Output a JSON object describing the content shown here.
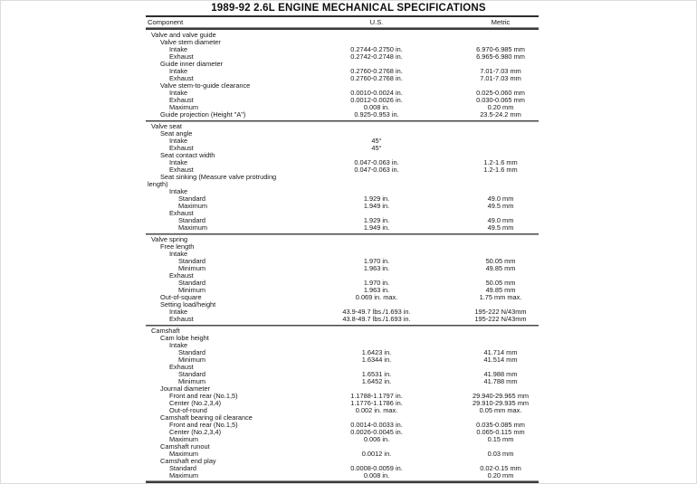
{
  "title": "1989-92 2.6L ENGINE MECHANICAL SPECIFICATIONS",
  "table": {
    "headers": {
      "component": "Component",
      "us": "U.S.",
      "metric": "Metric"
    },
    "sections": [
      {
        "name": "valve-and-valve-guide",
        "rows": [
          {
            "label": "Valve and valve guide",
            "level": 0,
            "us": "",
            "metric": ""
          },
          {
            "label": "Valve stem diameter",
            "level": 1,
            "us": "",
            "metric": ""
          },
          {
            "label": "Intake",
            "level": 2,
            "us": "0.2744-0.2750 in.",
            "metric": "6.970-6.985 mm"
          },
          {
            "label": "Exhaust",
            "level": 2,
            "us": "0.2742-0.2748 in.",
            "metric": "6.965-6.980 mm"
          },
          {
            "label": "Guide inner diameter",
            "level": 1,
            "us": "",
            "metric": ""
          },
          {
            "label": "Intake",
            "level": 2,
            "us": "0.2760-0.2768 in.",
            "metric": "7.01-7.03 mm"
          },
          {
            "label": "Exhaust",
            "level": 2,
            "us": "0.2760-0.2768 in.",
            "metric": "7.01-7.03 mm"
          },
          {
            "label": "Valve stem-to-guide clearance",
            "level": 1,
            "us": "",
            "metric": ""
          },
          {
            "label": "Intake",
            "level": 2,
            "us": "0.0010-0.0024 in.",
            "metric": "0.025-0.060 mm"
          },
          {
            "label": "Exhaust",
            "level": 2,
            "us": "0.0012-0.0026 in.",
            "metric": "0.030-0.065 mm"
          },
          {
            "label": "Maximum",
            "level": 2,
            "us": "0.008 in.",
            "metric": "0.20 mm"
          },
          {
            "label": "Guide projection (Height \"A\")",
            "level": 1,
            "us": "0.925-0.953 in.",
            "metric": "23.5-24.2 mm"
          }
        ]
      },
      {
        "name": "valve-seat",
        "rows": [
          {
            "label": "Valve seat",
            "level": 0,
            "us": "",
            "metric": ""
          },
          {
            "label": "Seat angle",
            "level": 1,
            "us": "",
            "metric": ""
          },
          {
            "label": "Intake",
            "level": 2,
            "us": "45°",
            "metric": ""
          },
          {
            "label": "Exhaust",
            "level": 2,
            "us": "45°",
            "metric": ""
          },
          {
            "label": "Seat contact width",
            "level": 1,
            "us": "",
            "metric": ""
          },
          {
            "label": "Intake",
            "level": 2,
            "us": "0.047-0.063 in.",
            "metric": "1.2-1.6 mm"
          },
          {
            "label": "Exhaust",
            "level": 2,
            "us": "0.047-0.063 in.",
            "metric": "1.2-1.6 mm"
          },
          {
            "label": "Seat sinking (Measure valve protruding",
            "level": 1,
            "us": "",
            "metric": ""
          },
          {
            "label": "length)",
            "level": -1,
            "us": "",
            "metric": ""
          },
          {
            "label": "Intake",
            "level": 2,
            "us": "",
            "metric": ""
          },
          {
            "label": "Standard",
            "level": 3,
            "us": "1.929 in.",
            "metric": "49.0 mm"
          },
          {
            "label": "Maximum",
            "level": 3,
            "us": "1.949 in.",
            "metric": "49.5 mm"
          },
          {
            "label": "Exhaust",
            "level": 2,
            "us": "",
            "metric": ""
          },
          {
            "label": "Standard",
            "level": 3,
            "us": "1.929 in.",
            "metric": "49.0 mm"
          },
          {
            "label": "Maximum",
            "level": 3,
            "us": "1.949 in.",
            "metric": "49.5 mm"
          }
        ]
      },
      {
        "name": "valve-spring",
        "rows": [
          {
            "label": "Valve spring",
            "level": 0,
            "us": "",
            "metric": ""
          },
          {
            "label": "Free length",
            "level": 1,
            "us": "",
            "metric": ""
          },
          {
            "label": "Intake",
            "level": 2,
            "us": "",
            "metric": ""
          },
          {
            "label": "Standard",
            "level": 3,
            "us": "1.970 in.",
            "metric": "50.05 mm"
          },
          {
            "label": "Minimum",
            "level": 3,
            "us": "1.963 in.",
            "metric": "49.85 mm"
          },
          {
            "label": "Exhaust",
            "level": 2,
            "us": "",
            "metric": ""
          },
          {
            "label": "Standard",
            "level": 3,
            "us": "1.970 in.",
            "metric": "50.05 mm"
          },
          {
            "label": "Minimum",
            "level": 3,
            "us": "1.963 in.",
            "metric": "49.85 mm"
          },
          {
            "label": "Out-of-square",
            "level": 1,
            "us": "0.069 in. max.",
            "metric": "1.75 mm max."
          },
          {
            "label": "Setting load/height",
            "level": 1,
            "us": "",
            "metric": ""
          },
          {
            "label": "Intake",
            "level": 2,
            "us": "43.9-49.7 lbs./1.693 in.",
            "metric": "195-222 N/43mm"
          },
          {
            "label": "Exhaust",
            "level": 2,
            "us": "43.8-49.7 lbs./1.693 in.",
            "metric": "195-222 N/43mm"
          }
        ]
      },
      {
        "name": "camshaft",
        "rows": [
          {
            "label": "Camshaft",
            "level": 0,
            "us": "",
            "metric": ""
          },
          {
            "label": "Cam lobe height",
            "level": 1,
            "us": "",
            "metric": ""
          },
          {
            "label": "Intake",
            "level": 2,
            "us": "",
            "metric": ""
          },
          {
            "label": "Standard",
            "level": 3,
            "us": "1.6423 in.",
            "metric": "41.714 mm"
          },
          {
            "label": "Minimum",
            "level": 3,
            "us": "1.6344 in.",
            "metric": "41.514 mm"
          },
          {
            "label": "Exhaust",
            "level": 2,
            "us": "",
            "metric": ""
          },
          {
            "label": "Standard",
            "level": 3,
            "us": "1.6531 in.",
            "metric": "41.988 mm"
          },
          {
            "label": "Minimum",
            "level": 3,
            "us": "1.6452 in.",
            "metric": "41.788 mm"
          },
          {
            "label": "Journal diameter",
            "level": 1,
            "us": "",
            "metric": ""
          },
          {
            "label": "Front and rear (No.1,5)",
            "level": 2,
            "us": "1.1788-1.1797 in.",
            "metric": "29.940-29.965 mm"
          },
          {
            "label": "Center (No.2,3,4)",
            "level": 2,
            "us": "1.1776-1.1786 in.",
            "metric": "29.910-29.935 mm"
          },
          {
            "label": "Out-of-round",
            "level": 2,
            "us": "0.002 in. max.",
            "metric": "0.05 mm max."
          },
          {
            "label": "Camshaft bearing oil clearance",
            "level": 1,
            "us": "",
            "metric": ""
          },
          {
            "label": "Front and rear (No.1,5)",
            "level": 2,
            "us": "0.0014-0.0033 in.",
            "metric": "0.035-0.085 mm"
          },
          {
            "label": "Center (No.2,3,4)",
            "level": 2,
            "us": "0.0026-0.0045 in.",
            "metric": "0.065-0.115 mm"
          },
          {
            "label": "Maximum",
            "level": 2,
            "us": "0.006 in.",
            "metric": "0.15 mm"
          },
          {
            "label": "Camshaft runout",
            "level": 1,
            "us": "",
            "metric": ""
          },
          {
            "label": "Maximum",
            "level": 2,
            "us": "0.0012 in.",
            "metric": "0.03 mm"
          },
          {
            "label": "Camshaft end play",
            "level": 1,
            "us": "",
            "metric": ""
          },
          {
            "label": "Standard",
            "level": 2,
            "us": "0.0008-0.0059 in.",
            "metric": "0.02-0.15 mm"
          },
          {
            "label": "Maximum",
            "level": 2,
            "us": "0.008 in.",
            "metric": "0.20 mm"
          }
        ]
      }
    ]
  }
}
